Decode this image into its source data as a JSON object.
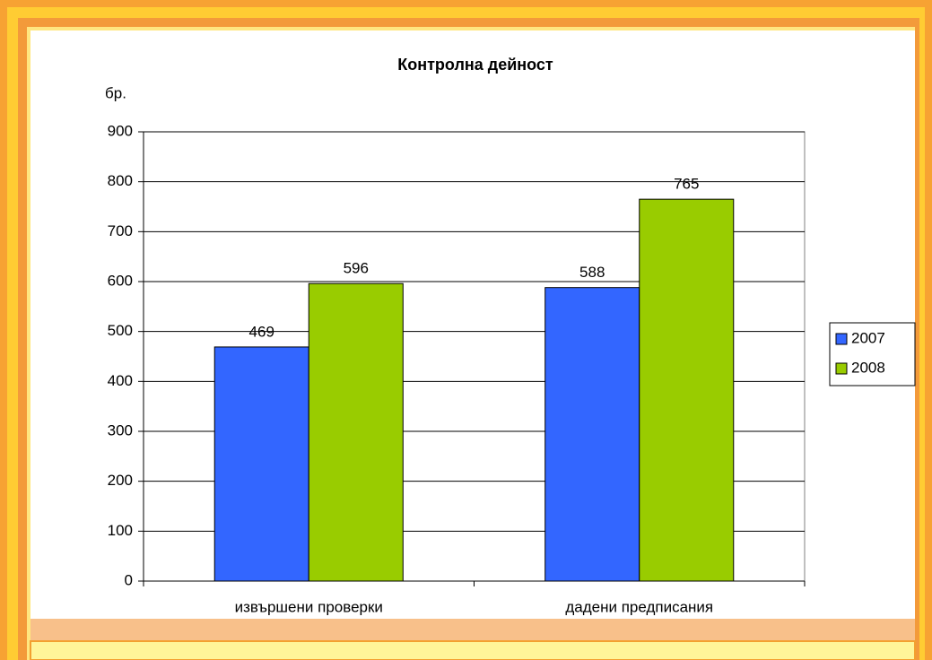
{
  "chart_data": {
    "type": "bar",
    "title": "Контролна дейност",
    "y_label": "бр.",
    "categories": [
      "извършени проверки",
      "дадени предписания"
    ],
    "series": [
      {
        "name": "2007",
        "color": "#3366ff",
        "values": [
          469,
          588
        ]
      },
      {
        "name": "2008",
        "color": "#99cc00",
        "values": [
          596,
          765
        ]
      }
    ],
    "ylim": [
      0,
      900
    ],
    "yticks": [
      0,
      100,
      200,
      300,
      400,
      500,
      600,
      700,
      800,
      900
    ],
    "grid": true,
    "legend": "right"
  }
}
